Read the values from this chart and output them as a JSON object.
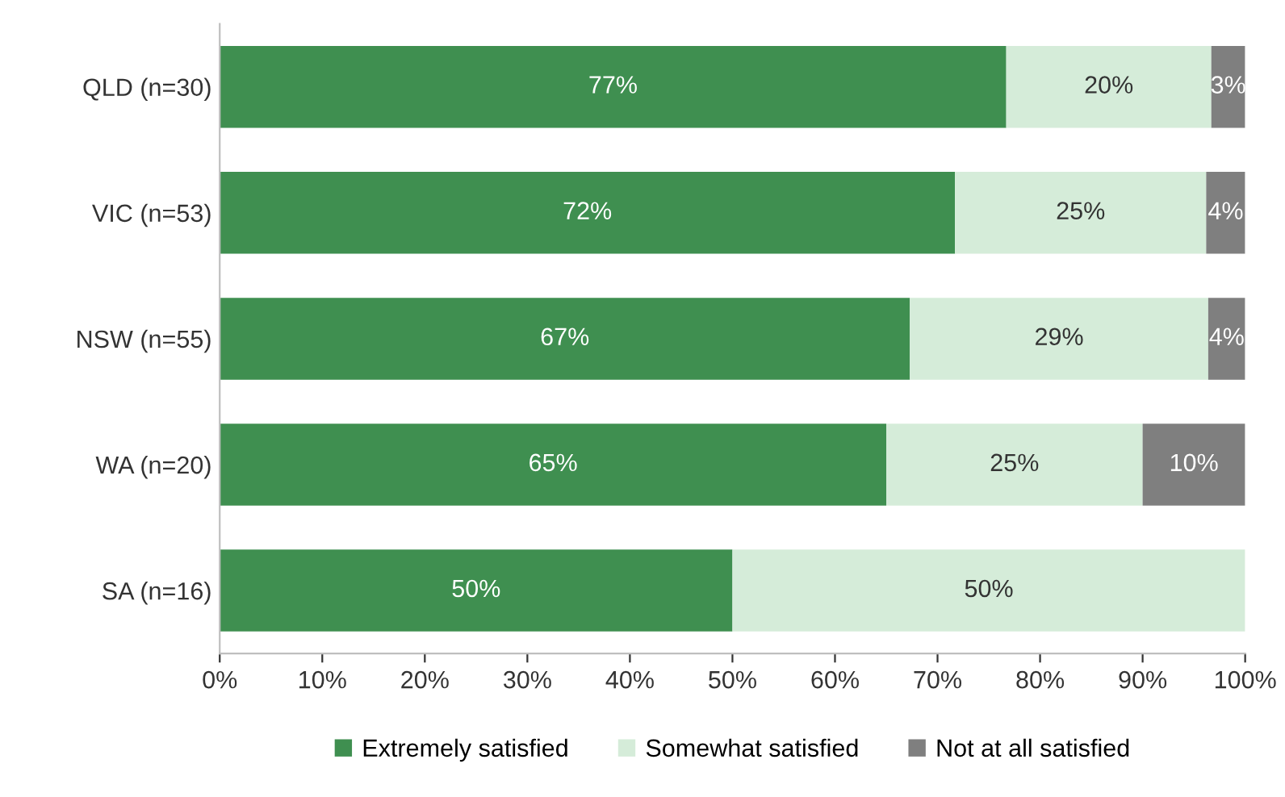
{
  "chart_data": {
    "type": "bar",
    "orientation": "horizontal",
    "stacked": true,
    "categories": [
      "QLD (n=30)",
      "VIC (n=53)",
      "NSW (n=55)",
      "WA (n=20)",
      "SA (n=16)"
    ],
    "series": [
      {
        "name": "Extremely satisfied",
        "color": "#3f8f50",
        "values": [
          76.7,
          71.7,
          67.3,
          65,
          50
        ],
        "value_labels": [
          "77%",
          "72%",
          "67%",
          "65%",
          "50%"
        ]
      },
      {
        "name": "Somewhat satisfied",
        "color": "#d5ecd9",
        "values": [
          20,
          24.5,
          29.1,
          25,
          50
        ],
        "value_labels": [
          "20%",
          "25%",
          "29%",
          "25%",
          "50%"
        ]
      },
      {
        "name": "Not at all satisfied",
        "color": "#7f7f7f",
        "values": [
          3.3,
          3.8,
          3.6,
          10,
          null
        ],
        "value_labels": [
          "3%",
          "4%",
          "4%",
          "10%",
          null
        ]
      }
    ],
    "xlim": [
      0,
      100
    ],
    "xticks": [
      {
        "value": 0,
        "label": "0%"
      },
      {
        "value": 10,
        "label": "10%"
      },
      {
        "value": 20,
        "label": "20%"
      },
      {
        "value": 30,
        "label": "30%"
      },
      {
        "value": 40,
        "label": "40%"
      },
      {
        "value": 50,
        "label": "50%"
      },
      {
        "value": 60,
        "label": "60%"
      },
      {
        "value": 70,
        "label": "70%"
      },
      {
        "value": 80,
        "label": "80%"
      },
      {
        "value": 90,
        "label": "90%"
      },
      {
        "value": 100,
        "label": "100%"
      }
    ],
    "legend": "bottom",
    "grid": false
  }
}
